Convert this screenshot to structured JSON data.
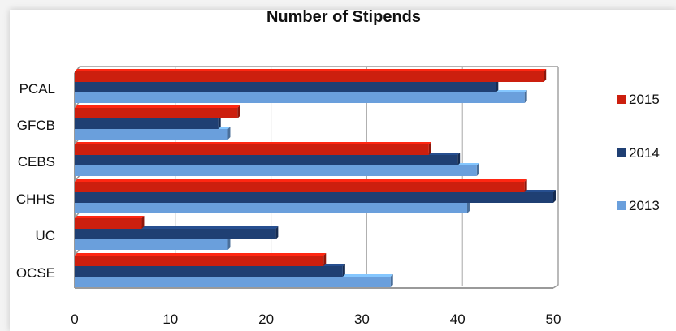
{
  "chart_data": {
    "type": "bar",
    "orientation": "horizontal",
    "title": "Number of Stipends",
    "categories": [
      "PCAL",
      "GFCB",
      "CEBS",
      "CHHS",
      "UC",
      "OCSE"
    ],
    "series": [
      {
        "name": "2015",
        "color": "#cc1f0e",
        "values": [
          49,
          17,
          37,
          47,
          7,
          26
        ]
      },
      {
        "name": "2014",
        "color": "#1f3f73",
        "values": [
          44,
          15,
          40,
          50,
          21,
          28
        ]
      },
      {
        "name": "2013",
        "color": "#6a9fdc",
        "values": [
          47,
          16,
          42,
          41,
          16,
          33
        ]
      }
    ],
    "xlim": [
      0,
      50
    ],
    "xticks": [
      0,
      10,
      20,
      30,
      40,
      50
    ],
    "grid": true,
    "legend_position": "right"
  }
}
